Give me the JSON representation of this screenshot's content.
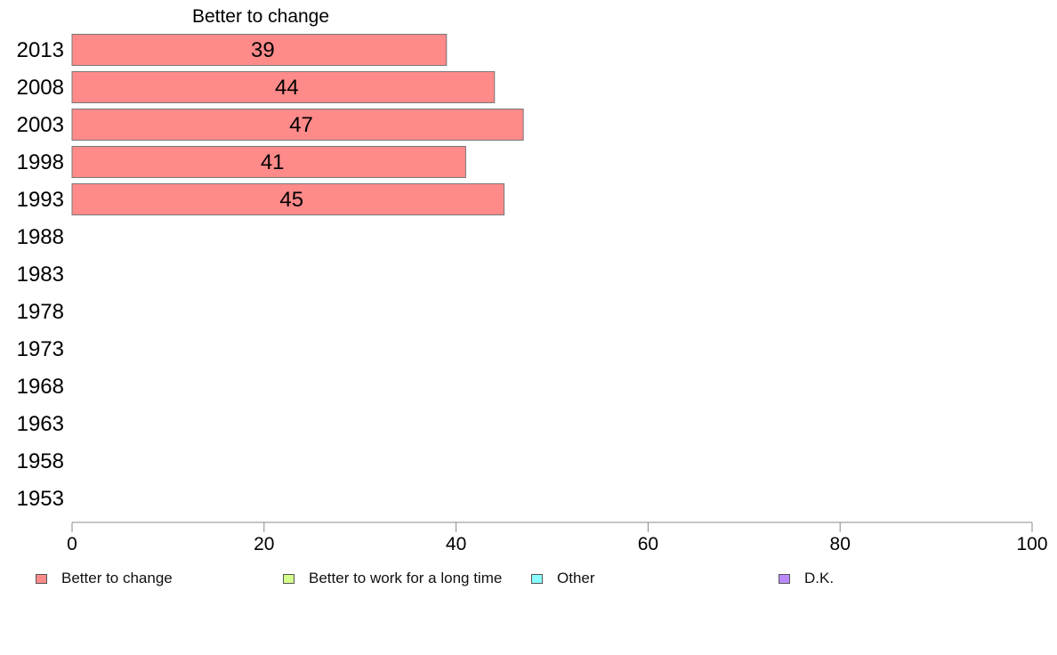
{
  "chart_data": {
    "type": "bar",
    "orientation": "horizontal",
    "title": "Better to change",
    "categories": [
      "2013",
      "2008",
      "2003",
      "1998",
      "1993",
      "1988",
      "1983",
      "1978",
      "1973",
      "1968",
      "1963",
      "1958",
      "1953"
    ],
    "series": [
      {
        "name": "Better to change",
        "color": "#ff8a8a",
        "values": [
          39,
          44,
          47,
          41,
          45,
          null,
          null,
          null,
          null,
          null,
          null,
          null,
          null
        ]
      }
    ],
    "xlim": [
      0,
      100
    ],
    "xticks": [
      "0",
      "20",
      "40",
      "60",
      "80",
      "100"
    ],
    "grid": false,
    "legend_position": "bottom"
  },
  "legend": [
    {
      "label": "Better to change",
      "color": "#ff8a8a"
    },
    {
      "label": "Better to work for a long time",
      "color": "#d4ff8a"
    },
    {
      "label": "Other",
      "color": "#8affff"
    },
    {
      "label": "D.K.",
      "color": "#b98aff"
    }
  ]
}
